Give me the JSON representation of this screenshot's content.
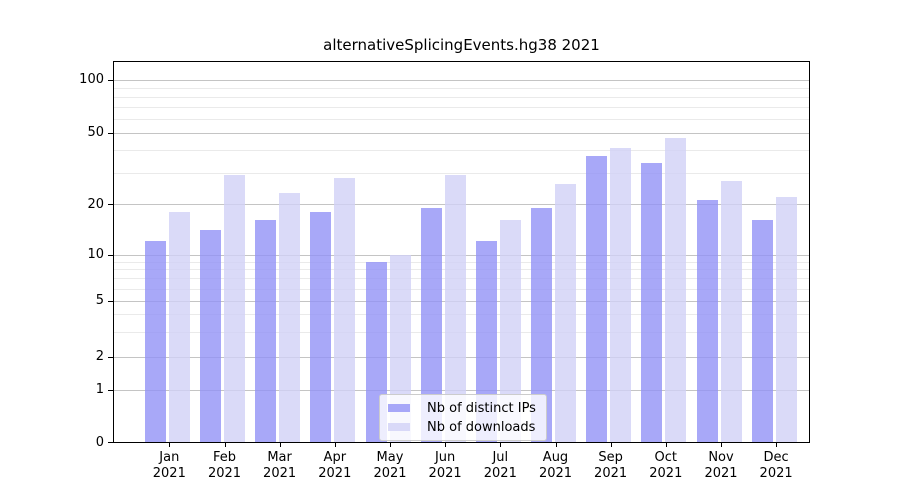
{
  "title": "alternativeSplicingEvents.hg38 2021",
  "chart_data": {
    "type": "bar",
    "title": "alternativeSplicingEvents.hg38 2021",
    "categories": [
      "Jan",
      "Feb",
      "Mar",
      "Apr",
      "May",
      "Jun",
      "Jul",
      "Aug",
      "Sep",
      "Oct",
      "Nov",
      "Dec"
    ],
    "year": "2021",
    "series": [
      {
        "name": "Nb of distinct IPs",
        "key": "distinct-ips",
        "color": "#a8a8f8",
        "values": [
          12,
          14,
          16,
          18,
          9,
          19,
          12,
          19,
          37,
          34,
          21,
          16
        ]
      },
      {
        "name": "Nb of downloads",
        "key": "downloads",
        "color": "#dadaf8",
        "values": [
          18,
          29,
          23,
          28,
          10,
          29,
          16,
          26,
          41,
          47,
          27,
          22
        ]
      }
    ],
    "yticks": [
      0,
      1,
      2,
      5,
      10,
      20,
      50,
      100
    ],
    "minor_yticks": [
      3,
      4,
      6,
      7,
      8,
      9,
      30,
      40,
      60,
      70,
      80,
      90
    ],
    "xlabel": "",
    "ylabel": "",
    "ylim": [
      0,
      125
    ],
    "yscale": "log-like (linear segment between 0 and 1)",
    "grid": "on",
    "legend_position": "lower-center"
  },
  "colors": {
    "bar_distinct_ips": "#a8a8f8",
    "bar_downloads": "#dadaf8",
    "grid_major": "#c4c4c4",
    "grid_minor": "#eaeaea",
    "axis": "#000000",
    "legend_border": "#cccccc"
  }
}
